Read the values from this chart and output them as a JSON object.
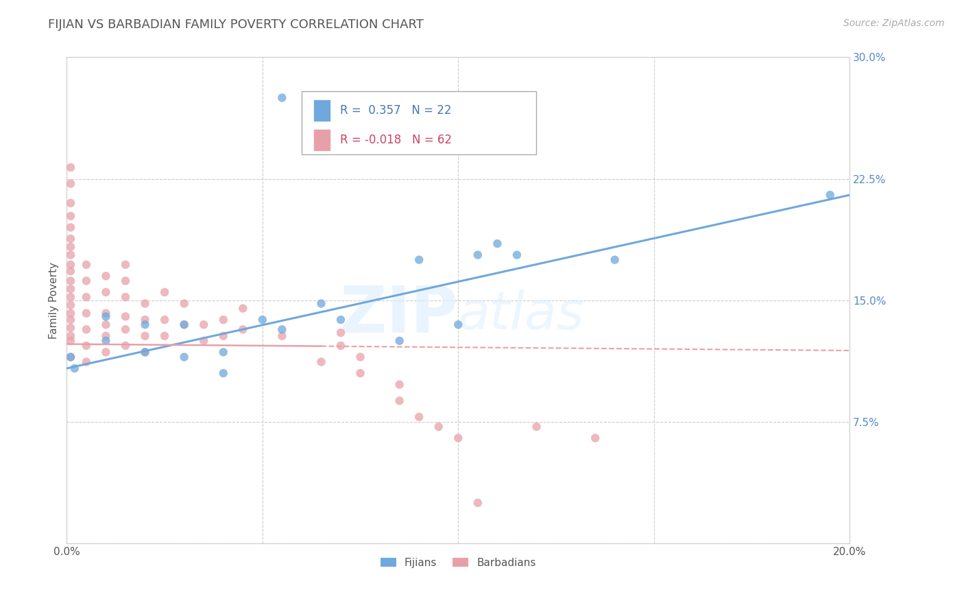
{
  "title": "FIJIAN VS BARBADIAN FAMILY POVERTY CORRELATION CHART",
  "source": "Source: ZipAtlas.com",
  "ylabel": "Family Poverty",
  "watermark": "ZIPAtlas",
  "xlim": [
    0.0,
    0.2
  ],
  "ylim": [
    0.0,
    0.3
  ],
  "xticks": [
    0.0,
    0.05,
    0.1,
    0.15,
    0.2
  ],
  "xtick_labels": [
    "0.0%",
    "",
    "",
    "",
    "20.0%"
  ],
  "yticks": [
    0.0,
    0.075,
    0.15,
    0.225,
    0.3
  ],
  "ytick_labels": [
    "",
    "7.5%",
    "15.0%",
    "22.5%",
    "30.0%"
  ],
  "fijian_color": "#6fa8dc",
  "barbadian_color": "#e8a0a8",
  "fijian_scatter": [
    [
      0.001,
      0.115
    ],
    [
      0.002,
      0.108
    ],
    [
      0.01,
      0.14
    ],
    [
      0.01,
      0.125
    ],
    [
      0.02,
      0.135
    ],
    [
      0.02,
      0.118
    ],
    [
      0.03,
      0.135
    ],
    [
      0.03,
      0.115
    ],
    [
      0.04,
      0.118
    ],
    [
      0.04,
      0.105
    ],
    [
      0.05,
      0.138
    ],
    [
      0.055,
      0.132
    ],
    [
      0.065,
      0.148
    ],
    [
      0.07,
      0.138
    ],
    [
      0.085,
      0.125
    ],
    [
      0.09,
      0.175
    ],
    [
      0.1,
      0.135
    ],
    [
      0.105,
      0.178
    ],
    [
      0.11,
      0.185
    ],
    [
      0.115,
      0.178
    ],
    [
      0.14,
      0.175
    ],
    [
      0.195,
      0.215
    ],
    [
      0.055,
      0.275
    ]
  ],
  "barbadian_scatter": [
    [
      0.001,
      0.115
    ],
    [
      0.001,
      0.125
    ],
    [
      0.001,
      0.128
    ],
    [
      0.001,
      0.133
    ],
    [
      0.001,
      0.138
    ],
    [
      0.001,
      0.142
    ],
    [
      0.001,
      0.147
    ],
    [
      0.001,
      0.152
    ],
    [
      0.001,
      0.157
    ],
    [
      0.001,
      0.162
    ],
    [
      0.001,
      0.168
    ],
    [
      0.001,
      0.172
    ],
    [
      0.001,
      0.178
    ],
    [
      0.001,
      0.183
    ],
    [
      0.001,
      0.188
    ],
    [
      0.001,
      0.195
    ],
    [
      0.001,
      0.202
    ],
    [
      0.001,
      0.21
    ],
    [
      0.001,
      0.222
    ],
    [
      0.001,
      0.232
    ],
    [
      0.005,
      0.112
    ],
    [
      0.005,
      0.122
    ],
    [
      0.005,
      0.132
    ],
    [
      0.005,
      0.142
    ],
    [
      0.005,
      0.152
    ],
    [
      0.005,
      0.162
    ],
    [
      0.005,
      0.172
    ],
    [
      0.01,
      0.118
    ],
    [
      0.01,
      0.128
    ],
    [
      0.01,
      0.135
    ],
    [
      0.01,
      0.142
    ],
    [
      0.01,
      0.155
    ],
    [
      0.01,
      0.165
    ],
    [
      0.015,
      0.122
    ],
    [
      0.015,
      0.132
    ],
    [
      0.015,
      0.14
    ],
    [
      0.015,
      0.152
    ],
    [
      0.015,
      0.162
    ],
    [
      0.015,
      0.172
    ],
    [
      0.02,
      0.118
    ],
    [
      0.02,
      0.128
    ],
    [
      0.02,
      0.138
    ],
    [
      0.02,
      0.148
    ],
    [
      0.025,
      0.128
    ],
    [
      0.025,
      0.138
    ],
    [
      0.025,
      0.155
    ],
    [
      0.03,
      0.135
    ],
    [
      0.03,
      0.148
    ],
    [
      0.035,
      0.125
    ],
    [
      0.035,
      0.135
    ],
    [
      0.04,
      0.128
    ],
    [
      0.04,
      0.138
    ],
    [
      0.045,
      0.132
    ],
    [
      0.045,
      0.145
    ],
    [
      0.055,
      0.128
    ],
    [
      0.065,
      0.112
    ],
    [
      0.07,
      0.122
    ],
    [
      0.07,
      0.13
    ],
    [
      0.075,
      0.115
    ],
    [
      0.075,
      0.105
    ],
    [
      0.085,
      0.098
    ],
    [
      0.085,
      0.088
    ],
    [
      0.09,
      0.078
    ],
    [
      0.095,
      0.072
    ],
    [
      0.1,
      0.065
    ],
    [
      0.12,
      0.072
    ],
    [
      0.135,
      0.065
    ],
    [
      0.105,
      0.025
    ]
  ],
  "fijian_line_x": [
    0.0,
    0.2
  ],
  "fijian_line_y": [
    0.108,
    0.215
  ],
  "barbadian_line_x": [
    0.0,
    0.2
  ],
  "barbadian_line_y": [
    0.123,
    0.119
  ],
  "barbadian_line_solid_end": 0.065,
  "grid_color": "#cccccc",
  "background_color": "#ffffff",
  "title_color": "#555555",
  "title_fontsize": 13,
  "axis_label_fontsize": 11,
  "tick_fontsize": 11,
  "source_fontsize": 10,
  "legend_fijian_label": "Fijians",
  "legend_barbadian_label": "Barbadians"
}
